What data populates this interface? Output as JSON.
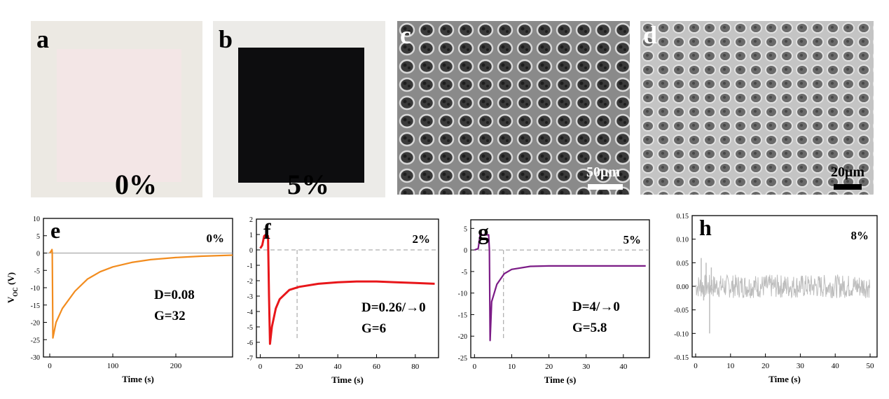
{
  "photos": {
    "a": {
      "letter": "a",
      "percent": "0%"
    },
    "b": {
      "letter": "b",
      "percent": "5%"
    },
    "c": {
      "letter": "c",
      "scale": "50μm"
    },
    "d": {
      "letter": "d",
      "scale": "20μm"
    }
  },
  "chart_data": [
    {
      "panel": "e",
      "type": "line",
      "color": "#F28C1E",
      "xlabel": "Time (s)",
      "ylabel": "V_OC (V)",
      "xlim": [
        -10,
        290
      ],
      "ylim": [
        -30,
        10
      ],
      "xticks": [
        0,
        100,
        200
      ],
      "yticks": [
        10,
        5,
        0,
        -5,
        -10,
        -15,
        -20,
        -25,
        -30
      ],
      "percent": "0%",
      "annotation": [
        "D=0.08",
        "G=32"
      ],
      "points": [
        [
          0,
          0
        ],
        [
          2,
          0.5
        ],
        [
          3.5,
          1
        ],
        [
          4,
          0
        ],
        [
          5,
          -24.5
        ],
        [
          10,
          -20
        ],
        [
          20,
          -16
        ],
        [
          40,
          -11
        ],
        [
          60,
          -7.5
        ],
        [
          80,
          -5.4
        ],
        [
          100,
          -4
        ],
        [
          130,
          -2.7
        ],
        [
          160,
          -1.9
        ],
        [
          200,
          -1.3
        ],
        [
          240,
          -0.9
        ],
        [
          290,
          -0.6
        ]
      ]
    },
    {
      "panel": "f",
      "type": "line",
      "color": "#E8161A",
      "xlabel": "Time (s)",
      "ylabel": "",
      "xlim": [
        -2,
        92
      ],
      "ylim": [
        -7,
        2
      ],
      "xticks": [
        0,
        20,
        40,
        60,
        80
      ],
      "yticks": [
        2,
        1,
        0,
        -1,
        -2,
        -3,
        -4,
        -5,
        -6,
        -7
      ],
      "percent": "2%",
      "annotation": [
        "D=0.26/→0",
        "G=6"
      ],
      "marker_x": 19,
      "points": [
        [
          0,
          0.1
        ],
        [
          1,
          0.3
        ],
        [
          2,
          0.9
        ],
        [
          3,
          1
        ],
        [
          4,
          0.9
        ],
        [
          4.5,
          -3
        ],
        [
          5,
          -6.1
        ],
        [
          6,
          -5
        ],
        [
          8,
          -3.8
        ],
        [
          10,
          -3.2
        ],
        [
          15,
          -2.6
        ],
        [
          20,
          -2.4
        ],
        [
          30,
          -2.2
        ],
        [
          40,
          -2.1
        ],
        [
          50,
          -2.05
        ],
        [
          60,
          -2.05
        ],
        [
          70,
          -2.1
        ],
        [
          80,
          -2.15
        ],
        [
          90,
          -2.2
        ]
      ]
    },
    {
      "panel": "g",
      "type": "line",
      "color": "#7B1B86",
      "xlabel": "Time (s)",
      "ylabel": "",
      "xlim": [
        -1,
        47
      ],
      "ylim": [
        -25,
        7
      ],
      "xticks": [
        0,
        10,
        20,
        30,
        40
      ],
      "yticks": [
        5,
        0,
        -5,
        -10,
        -15,
        -20,
        -25
      ],
      "percent": "5%",
      "annotation": [
        "D=4/→0",
        "G=5.8"
      ],
      "marker_x": 7.8,
      "points": [
        [
          0,
          0
        ],
        [
          1,
          0.3
        ],
        [
          1.5,
          3.5
        ],
        [
          3.8,
          3.5
        ],
        [
          4,
          0
        ],
        [
          4.2,
          -21
        ],
        [
          4.6,
          -12
        ],
        [
          6,
          -8
        ],
        [
          8,
          -5.5
        ],
        [
          10,
          -4.5
        ],
        [
          15,
          -3.8
        ],
        [
          20,
          -3.7
        ],
        [
          30,
          -3.7
        ],
        [
          40,
          -3.7
        ],
        [
          46,
          -3.7
        ]
      ]
    },
    {
      "panel": "h",
      "type": "line",
      "color": "#BDBDBD",
      "xlabel": "Time (s)",
      "ylabel": "",
      "xlim": [
        -1,
        52
      ],
      "ylim": [
        -0.15,
        0.15
      ],
      "xticks": [
        0,
        10,
        20,
        30,
        40,
        50
      ],
      "yticks": [
        "0.15",
        "0.10",
        "0.05",
        "0.00",
        "-0.05",
        "-0.10",
        "-0.15"
      ],
      "percent": "8%",
      "annotation": [],
      "noise_band": [
        -0.025,
        0.025
      ],
      "x_end": 50,
      "spikes": [
        [
          1.6,
          0.06
        ],
        [
          2.3,
          -0.03
        ],
        [
          3,
          0.05
        ],
        [
          4,
          -0.1
        ],
        [
          4.5,
          0.04
        ]
      ]
    }
  ]
}
